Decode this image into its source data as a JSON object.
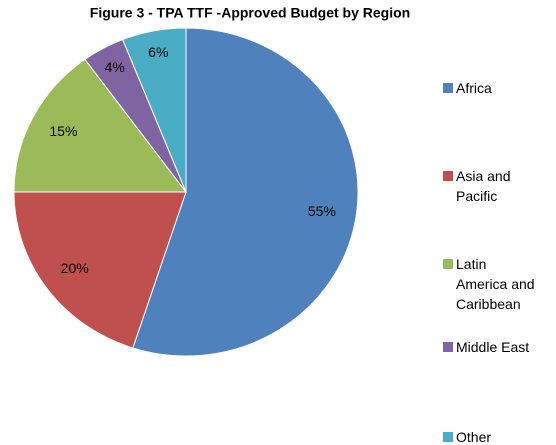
{
  "chart_data": {
    "type": "pie",
    "title": "Figure 3 - TPA TTF -Approved Budget by Region",
    "categories": [
      "Africa",
      "Asia and Pacific",
      "Latin America and Caribbean",
      "Middle East",
      "Other"
    ],
    "values": [
      55,
      20,
      15,
      4,
      6
    ],
    "value_labels": [
      "55%",
      "20%",
      "15%",
      "4%",
      "6%"
    ],
    "colors": [
      "#4f81bd",
      "#c0504d",
      "#9bbb59",
      "#8064a2",
      "#4bacc6"
    ],
    "legend": "right"
  }
}
